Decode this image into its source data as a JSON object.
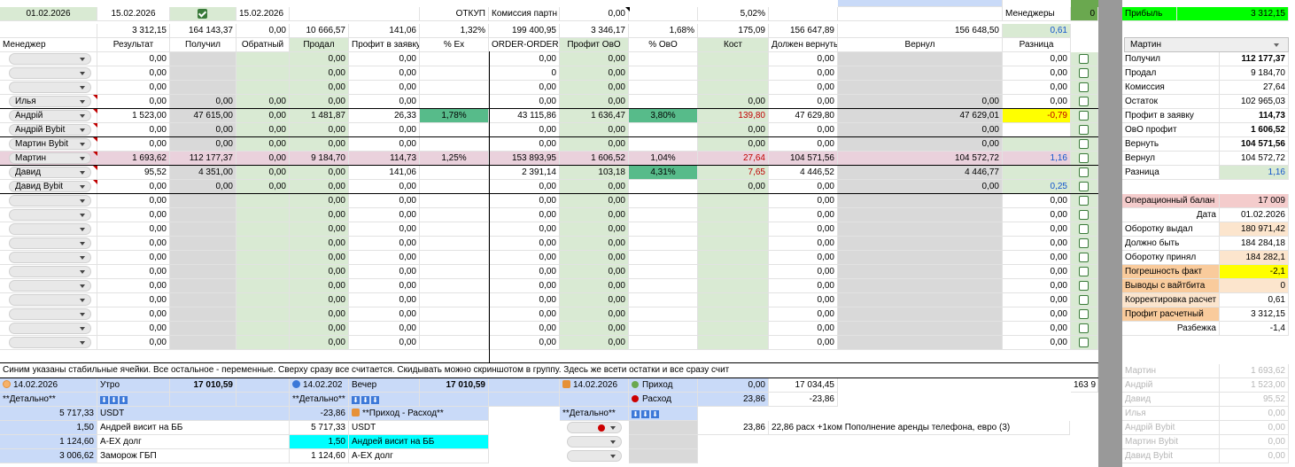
{
  "top": {
    "date1": "01.02.2026",
    "date2": "15.02.2026",
    "date3": "15.02.2026",
    "otkup": "ОТКУП",
    "commission_label": "Комиссия партн",
    "commission_val": "0,00",
    "pct": "5,02%",
    "managers_label": "Менеджеры",
    "managers_val": "0",
    "profit_label": "Прибыль",
    "profit_val": "3 312,15"
  },
  "totals": [
    "3 312,15",
    "164 143,37",
    "0,00",
    "10 666,57",
    "141,06",
    "1,32%",
    "199 400,95",
    "3 346,17",
    "1,68%",
    "175,09",
    "156 647,89",
    "156 648,50",
    "0,61"
  ],
  "headers": [
    "Менеджер",
    "Результат",
    "Получил",
    "Обратный",
    "Продал",
    "Профит в заявку",
    "% Ex",
    "ORDER-ORDER",
    "Профит ОвО",
    "% ОвО",
    "Кост",
    "Должен вернуть",
    "Вернул",
    "Разница"
  ],
  "rows": [
    {
      "name": "",
      "v": [
        "0,00",
        "",
        "",
        "0,00",
        "0,00",
        "",
        "0,00",
        "0,00",
        "",
        "",
        "0,00",
        "",
        "0,00"
      ]
    },
    {
      "name": "",
      "v": [
        "0,00",
        "",
        "",
        "0,00",
        "0,00",
        "",
        "0",
        "0,00",
        "",
        "",
        "0,00",
        "",
        "0,00"
      ]
    },
    {
      "name": "",
      "v": [
        "0,00",
        "",
        "",
        "0,00",
        "0,00",
        "",
        "0,00",
        "0,00",
        "",
        "",
        "0,00",
        "",
        "0,00"
      ]
    },
    {
      "name": "Илья",
      "v": [
        "0,00",
        "0,00",
        "0,00",
        "0,00",
        "0,00",
        "",
        "0,00",
        "0,00",
        "",
        "0,00",
        "0,00",
        "0,00",
        "0,00"
      ]
    },
    {
      "name": "Андрій",
      "v": [
        "1 523,00",
        "47 615,00",
        "0,00",
        "1 481,87",
        "26,33",
        "1,78%",
        "43 115,86",
        "1 636,47",
        "3,80%",
        "139,80",
        "47 629,80",
        "47 629,01",
        "-0,79"
      ]
    },
    {
      "name": "Андрій Bybit",
      "v": [
        "0,00",
        "0,00",
        "0,00",
        "0,00",
        "0,00",
        "",
        "0,00",
        "0,00",
        "",
        "0,00",
        "0,00",
        "0,00",
        ""
      ]
    },
    {
      "name": "Мартин Bybit",
      "v": [
        "0,00",
        "0,00",
        "0,00",
        "0,00",
        "0,00",
        "",
        "0,00",
        "0,00",
        "",
        "0,00",
        "0,00",
        "0,00",
        ""
      ]
    },
    {
      "name": "Мартин",
      "v": [
        "1 693,62",
        "112 177,37",
        "0,00",
        "9 184,70",
        "114,73",
        "1,25%",
        "153 893,95",
        "1 606,52",
        "1,04%",
        "27,64",
        "104 571,56",
        "104 572,72",
        "1,16"
      ]
    },
    {
      "name": "Давид",
      "v": [
        "95,52",
        "4 351,00",
        "0,00",
        "0,00",
        "141,06",
        "",
        "2 391,14",
        "103,18",
        "4,31%",
        "7,65",
        "4 446,52",
        "4 446,77",
        ""
      ]
    },
    {
      "name": "Давид Bybit",
      "v": [
        "0,00",
        "0,00",
        "0,00",
        "0,00",
        "0,00",
        "",
        "0,00",
        "0,00",
        "",
        "0,00",
        "0,00",
        "0,00",
        "0,25"
      ]
    },
    {
      "name": "",
      "v": [
        "0,00",
        "",
        "",
        "0,00",
        "0,00",
        "",
        "0,00",
        "0,00",
        "",
        "",
        "0,00",
        "",
        "0,00"
      ]
    },
    {
      "name": "",
      "v": [
        "0,00",
        "",
        "",
        "0,00",
        "0,00",
        "",
        "0,00",
        "0,00",
        "",
        "",
        "0,00",
        "",
        "0,00"
      ]
    },
    {
      "name": "",
      "v": [
        "0,00",
        "",
        "",
        "0,00",
        "0,00",
        "",
        "0,00",
        "0,00",
        "",
        "",
        "0,00",
        "",
        "0,00"
      ]
    },
    {
      "name": "",
      "v": [
        "0,00",
        "",
        "",
        "0,00",
        "0,00",
        "",
        "0,00",
        "0,00",
        "",
        "",
        "0,00",
        "",
        "0,00"
      ]
    },
    {
      "name": "",
      "v": [
        "0,00",
        "",
        "",
        "0,00",
        "0,00",
        "",
        "0,00",
        "0,00",
        "",
        "",
        "0,00",
        "",
        "0,00"
      ]
    },
    {
      "name": "",
      "v": [
        "0,00",
        "",
        "",
        "0,00",
        "0,00",
        "",
        "0,00",
        "0,00",
        "",
        "",
        "0,00",
        "",
        "0,00"
      ]
    },
    {
      "name": "",
      "v": [
        "0,00",
        "",
        "",
        "0,00",
        "0,00",
        "",
        "0,00",
        "0,00",
        "",
        "",
        "0,00",
        "",
        "0,00"
      ]
    },
    {
      "name": "",
      "v": [
        "0,00",
        "",
        "",
        "0,00",
        "0,00",
        "",
        "0,00",
        "0,00",
        "",
        "",
        "0,00",
        "",
        "0,00"
      ]
    },
    {
      "name": "",
      "v": [
        "0,00",
        "",
        "",
        "0,00",
        "0,00",
        "",
        "0,00",
        "0,00",
        "",
        "",
        "0,00",
        "",
        "0,00"
      ]
    },
    {
      "name": "",
      "v": [
        "0,00",
        "",
        "",
        "0,00",
        "0,00",
        "",
        "0,00",
        "0,00",
        "",
        "",
        "0,00",
        "",
        "0,00"
      ]
    },
    {
      "name": "",
      "v": [
        "0,00",
        "",
        "",
        "0,00",
        "0,00",
        "",
        "0,00",
        "0,00",
        "",
        "",
        "0,00",
        "",
        "0,00"
      ]
    }
  ],
  "note": "Синим указаны стабильные ячейки. Все остальное - переменные. Сверху сразу все считается. Скидывать можно скриншотом в группу. Здесь же всети остатки и все сразу счит",
  "bottom": {
    "morning": {
      "date": "14.02.2026",
      "label": "Утро",
      "value": "17 010,59"
    },
    "evening": {
      "date": "14.02.202",
      "label": "Вечер",
      "value": "17 010,59"
    },
    "income": {
      "date": "14.02.2026",
      "label": "Приход",
      "value": "0,00",
      "right": "17 034,45"
    },
    "expense": {
      "label": "Расход",
      "value": "23,86",
      "right": "-23,86"
    },
    "detail": "**Детально**",
    "income_expense": "**Приход - Расход**",
    "far": "163 9",
    "left_rows": [
      {
        "val": "5 717,33",
        "label": "USDT"
      },
      {
        "val": "1,50",
        "label": "Андрей висит на ББ"
      },
      {
        "val": "1 124,60",
        "label": "A-EX долг"
      },
      {
        "val": "3 006,62",
        "label": "Заморож ГБП"
      }
    ],
    "mid_rows": [
      {
        "val": "-23,86",
        "label": ""
      },
      {
        "val": "5 717,33",
        "label": "USDT"
      },
      {
        "val": "1,50",
        "label": "Андрей висит на ББ"
      },
      {
        "val": "1 124,60",
        "label": "A-EX долг"
      }
    ],
    "rent_val": "23,86",
    "rent_text": "22,86 расх +1ком Пополнение аренды телефона, евро (3)"
  },
  "panel": {
    "select": "Мартин",
    "rows": [
      {
        "label": "Получил",
        "val": "112 177,37"
      },
      {
        "label": "Продал",
        "val": "9 184,70"
      },
      {
        "label": "Комиссия",
        "val": "27,64"
      },
      {
        "label": "Остаток",
        "val": "102 965,03"
      },
      {
        "label": "Профит в заявку",
        "val": "114,73"
      },
      {
        "label": "ОвО профит",
        "val": "1 606,52"
      },
      {
        "label": "Вернуть",
        "val": "104 571,56"
      },
      {
        "label": "Вернул",
        "val": "104 572,72"
      },
      {
        "label": "Разница",
        "val": "1,16"
      }
    ],
    "ops": [
      {
        "label": "Операционный балан",
        "val": "17 009"
      },
      {
        "label": "Дата",
        "val": "01.02.2026"
      },
      {
        "label": "Оборотку выдал",
        "val": "180 971,42"
      },
      {
        "label": "Должно быть",
        "val": "184 284,18"
      },
      {
        "label": "Оборотку принял",
        "val": "184 282,1"
      },
      {
        "label": "Погрешность факт",
        "val": "-2,1"
      },
      {
        "label": "Выводы с вайтбита",
        "val": "0"
      },
      {
        "label": "Корректировка расчет",
        "val": "0,61"
      },
      {
        "label": "Профит расчетный",
        "val": "3 312,15"
      },
      {
        "label": "Разбежка",
        "val": "-1,4"
      }
    ],
    "summary": [
      {
        "label": "Мартин",
        "val": "1 693,62"
      },
      {
        "label": "Андрій",
        "val": "1 523,00"
      },
      {
        "label": "Давид",
        "val": "95,52"
      },
      {
        "label": "Илья",
        "val": "0,00"
      },
      {
        "label": "Андрій Bybit",
        "val": "0,00"
      },
      {
        "label": "Мартин Bybit",
        "val": "0,00"
      },
      {
        "label": "Давид Bybit",
        "val": "0,00"
      }
    ]
  }
}
